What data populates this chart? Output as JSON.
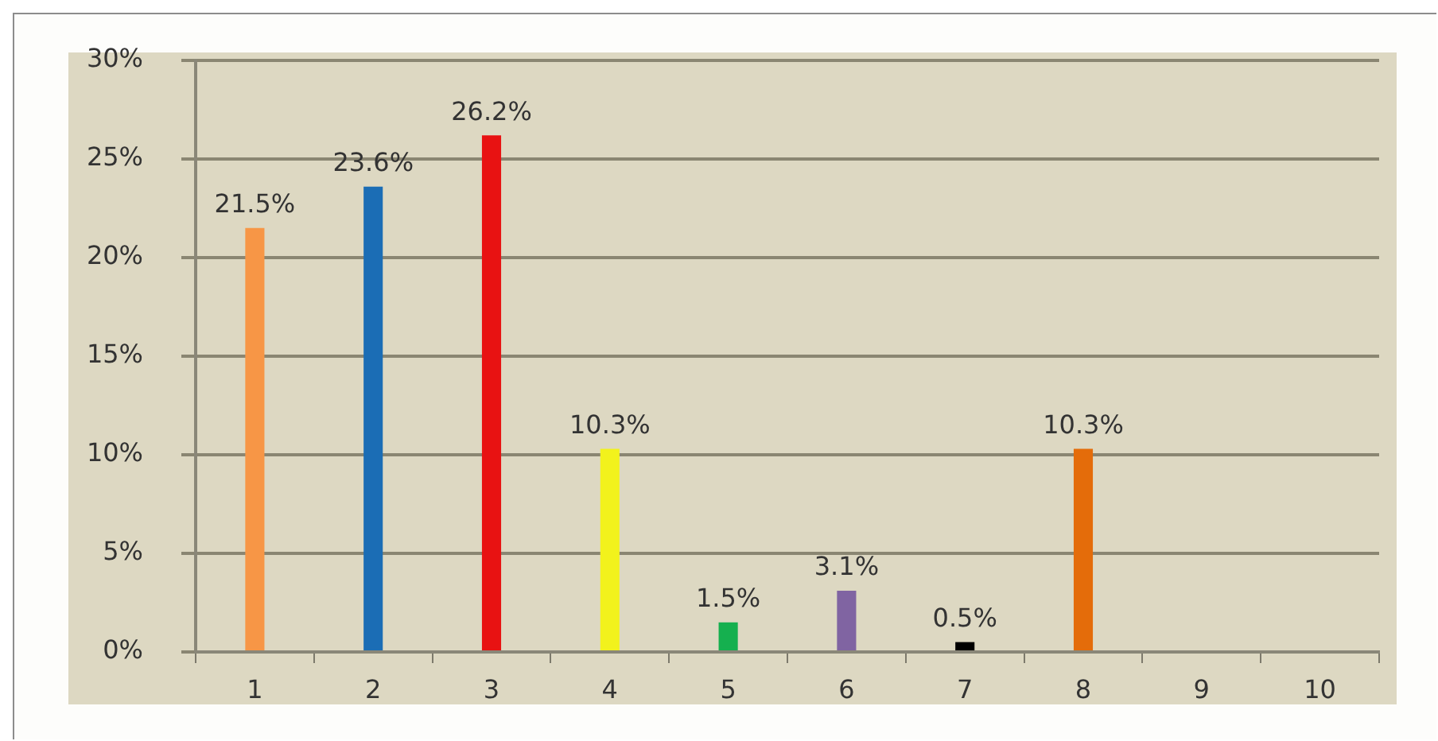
{
  "chart_data": {
    "type": "bar",
    "categories": [
      "1",
      "2",
      "3",
      "4",
      "5",
      "6",
      "7",
      "8",
      "9",
      "10"
    ],
    "values": [
      21.5,
      23.6,
      26.2,
      10.3,
      1.5,
      3.1,
      0.5,
      10.3,
      null,
      null
    ],
    "colors": [
      "#f79646",
      "#1b6db5",
      "#e81212",
      "#f2f21c",
      "#15b04f",
      "#8064a2",
      "#000000",
      "#e46c0a",
      "#9a9a9a",
      "#9a9a9a"
    ],
    "value_labels": [
      "21.5%",
      "23.6%",
      "26.2%",
      "10.3%",
      "1.5%",
      "3.1%",
      "0.5%",
      "10.3%",
      null,
      null
    ],
    "ylim": [
      0,
      30
    ],
    "yticks": [
      {
        "value": 0,
        "label": "0%"
      },
      {
        "value": 5,
        "label": "5%"
      },
      {
        "value": 10,
        "label": "10%"
      },
      {
        "value": 15,
        "label": "15%"
      },
      {
        "value": 20,
        "label": "20%"
      },
      {
        "value": 25,
        "label": "25%"
      },
      {
        "value": 30,
        "label": "30%"
      }
    ],
    "grid": "y"
  }
}
